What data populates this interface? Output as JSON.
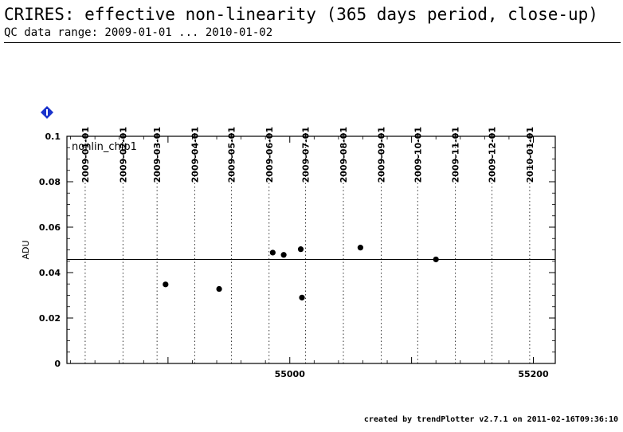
{
  "header": {
    "title": "CRIRES: effective non-linearity (365 days period, close-up)",
    "subtitle": "QC data range: 2009-01-01 ... 2010-01-02"
  },
  "footer": {
    "credit": "created by trendPlotter v2.7.1 on 2011-02-16T09:36:10"
  },
  "icons": {
    "info": "info-diamond-icon"
  },
  "colors": {
    "badge": "#1a33cc",
    "points": "#000000",
    "grid": "#000000"
  },
  "chart_data": {
    "type": "scatter",
    "panel_label": "nonlin_chip1",
    "ylabel": "ADU",
    "xlabel": "",
    "xlim": [
      54817,
      55218
    ],
    "ylim": [
      0,
      0.1
    ],
    "y_ticks": [
      0,
      0.02,
      0.04,
      0.06,
      0.08,
      0.1
    ],
    "y_tick_labels": [
      "0",
      "0.02",
      "0.04",
      "0.06",
      "0.08",
      "0.1"
    ],
    "x_ticks": [
      55000,
      55200
    ],
    "x_tick_labels": [
      "55000",
      "55200"
    ],
    "date_ticks": [
      {
        "label": "2009-01-01",
        "mjd": 54832
      },
      {
        "label": "2009-02-01",
        "mjd": 54863
      },
      {
        "label": "2009-03-01",
        "mjd": 54891
      },
      {
        "label": "2009-04-01",
        "mjd": 54922
      },
      {
        "label": "2009-05-01",
        "mjd": 54952
      },
      {
        "label": "2009-06-01",
        "mjd": 54983
      },
      {
        "label": "2009-07-01",
        "mjd": 55013
      },
      {
        "label": "2009-08-01",
        "mjd": 55044
      },
      {
        "label": "2009-09-01",
        "mjd": 55075
      },
      {
        "label": "2009-10-01",
        "mjd": 55105
      },
      {
        "label": "2009-11-01",
        "mjd": 55136
      },
      {
        "label": "2009-12-01",
        "mjd": 55166
      },
      {
        "label": "2010-01-01",
        "mjd": 55197
      }
    ],
    "reference_line": 0.0458,
    "grid": "vertical-dotted-at-month-starts",
    "points": [
      {
        "x": 54898,
        "y": 0.0348
      },
      {
        "x": 54942,
        "y": 0.0328
      },
      {
        "x": 54986,
        "y": 0.0488
      },
      {
        "x": 54995,
        "y": 0.0478
      },
      {
        "x": 55009,
        "y": 0.0503
      },
      {
        "x": 55010,
        "y": 0.029
      },
      {
        "x": 55058,
        "y": 0.051
      },
      {
        "x": 55120,
        "y": 0.0458
      }
    ]
  }
}
